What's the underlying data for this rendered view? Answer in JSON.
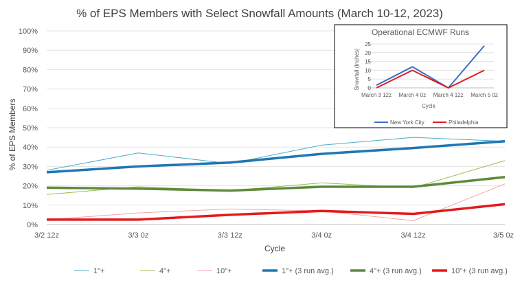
{
  "chart_data": [
    {
      "type": "line",
      "title": "% of EPS Members with Select Snowfall Amounts (March 10-12, 2023)",
      "xlabel": "Cycle",
      "ylabel": "% of EPS Members",
      "categories": [
        "3/2 12z",
        "3/3 0z",
        "3/3 12z",
        "3/4 0z",
        "3/4 12z",
        "3/5 0z"
      ],
      "ylim": [
        0,
        100
      ],
      "yticks": [
        "0%",
        "10%",
        "20%",
        "30%",
        "40%",
        "50%",
        "60%",
        "70%",
        "80%",
        "90%",
        "100%"
      ],
      "ytick_values": [
        0,
        10,
        20,
        30,
        40,
        50,
        60,
        70,
        80,
        90,
        100
      ],
      "grid": true,
      "legend_position": "bottom",
      "series": [
        {
          "name": "1\"+",
          "values": [
            28,
            37,
            31.5,
            41,
            45,
            43
          ],
          "color": "#4bacc6",
          "weight": "thin"
        },
        {
          "name": "4\"+",
          "values": [
            15.5,
            19.5,
            17.5,
            21.5,
            19,
            33
          ],
          "color": "#9bbb59",
          "weight": "thin"
        },
        {
          "name": "10\"+",
          "values": [
            2.5,
            6,
            8,
            7,
            2,
            21
          ],
          "color": "#f2a3a8",
          "weight": "thin"
        },
        {
          "name": "1\"+ (3 run avg.)",
          "values": [
            27,
            30,
            32,
            36.5,
            39.5,
            43
          ],
          "color": "#1f77b4",
          "weight": "thick"
        },
        {
          "name": "4\"+ (3 run avg.)",
          "values": [
            19,
            18.5,
            17.5,
            19.5,
            19.5,
            24.5
          ],
          "color": "#5e8a3a",
          "weight": "thick"
        },
        {
          "name": "10\"+ (3 run avg.)",
          "values": [
            2.5,
            2.5,
            5,
            7,
            5.5,
            10.5
          ],
          "color": "#e31a1c",
          "weight": "thick"
        }
      ]
    },
    {
      "type": "line",
      "title": "Operational ECMWF Runs",
      "xlabel": "Cycle",
      "ylabel": "Snowfall (Inches)",
      "categories": [
        "March 3 12z",
        "March 4 0z",
        "March 4 12z",
        "March 5 0z"
      ],
      "ylim": [
        0,
        25
      ],
      "yticks": [
        "0",
        "5",
        "10",
        "15",
        "20",
        "25"
      ],
      "ytick_values": [
        0,
        5,
        10,
        15,
        20,
        25
      ],
      "grid": true,
      "legend_position": "bottom",
      "series": [
        {
          "name": "New York City",
          "values": [
            1.5,
            12,
            0,
            24
          ],
          "color": "#3a6fc4"
        },
        {
          "name": "Philadelphia",
          "values": [
            0,
            10,
            0,
            10
          ],
          "color": "#e31a1c"
        }
      ]
    }
  ]
}
